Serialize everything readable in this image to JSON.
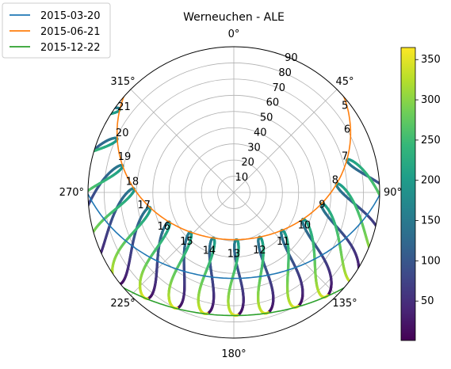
{
  "chart_data": {
    "type": "scatter",
    "projection": "polar",
    "title": "Werneuchen - ALE",
    "theta_zero_location": "N",
    "theta_direction": "clockwise",
    "theta_ticks": [
      "0°",
      "45°",
      "90°",
      "135°",
      "180°",
      "225°",
      "270°",
      "315°"
    ],
    "radial_ticks": [
      "10",
      "20",
      "30",
      "40",
      "50",
      "60",
      "70",
      "80",
      "90"
    ],
    "rlim": [
      0,
      90
    ],
    "grid": true,
    "legend_position": "top-left",
    "series": [
      {
        "name": "2015-03-20",
        "color": "#1f77b4",
        "min_zenith_deg": 61.6
      },
      {
        "name": "2015-06-21",
        "color": "#ff7f0e",
        "min_zenith_deg": 38.1
      },
      {
        "name": "2015-12-22",
        "color": "#2ca02c",
        "min_zenith_deg": 84.9
      }
    ],
    "analemma_hours": [
      "5",
      "6",
      "7",
      "8",
      "9",
      "10",
      "11",
      "12",
      "13",
      "14",
      "15",
      "16",
      "17",
      "18",
      "19",
      "20",
      "21"
    ],
    "hour_labels": [
      {
        "text": "5",
        "az": 52,
        "zen": 87
      },
      {
        "text": "6",
        "az": 61,
        "zen": 80
      },
      {
        "text": "7",
        "az": 72,
        "zen": 72
      },
      {
        "text": "8",
        "az": 83,
        "zen": 63
      },
      {
        "text": "9",
        "az": 98,
        "zen": 55
      },
      {
        "text": "10",
        "az": 115,
        "zen": 48
      },
      {
        "text": "11",
        "az": 135,
        "zen": 43
      },
      {
        "text": "12",
        "az": 156,
        "zen": 39
      },
      {
        "text": "13",
        "az": 180,
        "zen": 38
      },
      {
        "text": "14",
        "az": 203,
        "zen": 39
      },
      {
        "text": "15",
        "az": 224,
        "zen": 42
      },
      {
        "text": "16",
        "az": 244,
        "zen": 48
      },
      {
        "text": "17",
        "az": 262,
        "zen": 56
      },
      {
        "text": "18",
        "az": 276,
        "zen": 63
      },
      {
        "text": "19",
        "az": 288,
        "zen": 71
      },
      {
        "text": "20",
        "az": 298,
        "zen": 78
      },
      {
        "text": "21",
        "az": 308,
        "zen": 86
      }
    ],
    "colorbar": {
      "colormap": "viridis",
      "range": [
        1,
        365
      ],
      "ticks": [
        "50",
        "100",
        "150",
        "200",
        "250",
        "300",
        "350"
      ],
      "stops": [
        "#440154",
        "#482878",
        "#3e4989",
        "#31688e",
        "#26828e",
        "#1f9e89",
        "#35b779",
        "#6ece58",
        "#b5de2b",
        "#fde725"
      ]
    }
  }
}
